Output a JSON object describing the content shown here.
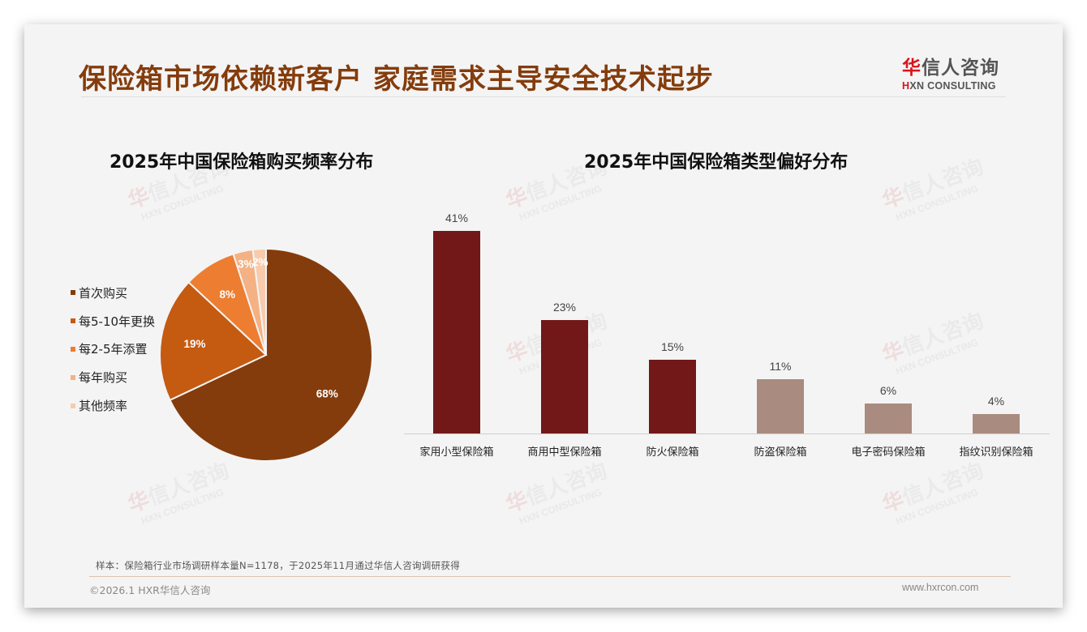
{
  "header": {
    "title": "保险箱市场依赖新客户 家庭需求主导安全技术起步",
    "logo_cn_first": "华",
    "logo_cn_rest": "信人咨询",
    "logo_en_first": "H",
    "logo_en_rest": "XN CONSULTING"
  },
  "watermark": {
    "cn_first": "华",
    "cn_rest": "信人咨询",
    "en": "HXN CONSULTING"
  },
  "colors": {
    "title": "#843C0C",
    "pie": [
      "#843C0C",
      "#C55A11",
      "#ED7D31",
      "#F4B183",
      "#F8CBAD"
    ],
    "bar_dark": "#721818",
    "bar_light": "#AA8B80"
  },
  "chart_data": [
    {
      "type": "pie",
      "title": "2025年中国保险箱购买频率分布",
      "categories": [
        "首次购买",
        "每5-10年更换",
        "每2-5年添置",
        "每年购买",
        "其他频率"
      ],
      "values": [
        68,
        19,
        8,
        3,
        2
      ],
      "labels": [
        "68%",
        "19%",
        "8%",
        "3%",
        "2%"
      ],
      "unit": "%",
      "legend_position": "left",
      "start_angle": "12 o'clock, clockwise"
    },
    {
      "type": "bar",
      "title": "2025年中国保险箱类型偏好分布",
      "categories": [
        "家用小型保险箱",
        "商用中型保险箱",
        "防火保险箱",
        "防盗保险箱",
        "电子密码保险箱",
        "指纹识别保险箱"
      ],
      "values": [
        41,
        23,
        15,
        11,
        6,
        4
      ],
      "labels": [
        "41%",
        "23%",
        "15%",
        "11%",
        "6%",
        "4%"
      ],
      "bar_colors": [
        "#721818",
        "#721818",
        "#721818",
        "#AA8B80",
        "#AA8B80",
        "#AA8B80"
      ],
      "xlabel": "",
      "ylabel": "",
      "ylim": [
        0,
        45
      ],
      "grid": false,
      "yaxis_visible": false
    }
  ],
  "footer": {
    "source": "样本：保险箱行业市场调研样本量N=1178，于2025年11月通过华信人咨询调研获得",
    "copyright": "©2026.1 HXR华信人咨询",
    "website": "www.hxrcon.com"
  }
}
